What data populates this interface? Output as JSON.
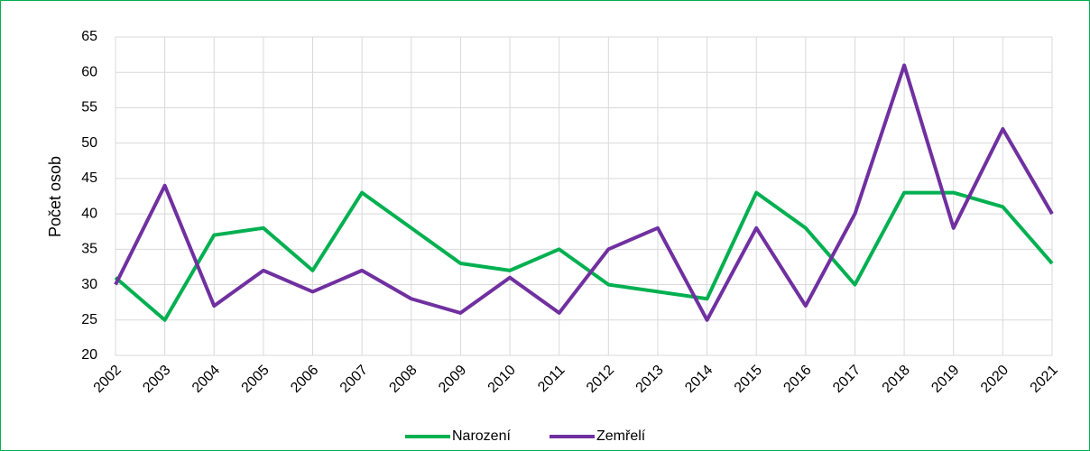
{
  "chart_data": {
    "type": "line",
    "y_label": "Počet osob",
    "categories": [
      "2002",
      "2003",
      "2004",
      "2005",
      "2006",
      "2007",
      "2008",
      "2009",
      "2010",
      "2011",
      "2012",
      "2013",
      "2014",
      "2015",
      "2016",
      "2017",
      "2018",
      "2019",
      "2020",
      "2021"
    ],
    "series": [
      {
        "name": "Narození",
        "color": "#00b050",
        "values": [
          31,
          25,
          37,
          38,
          32,
          43,
          38,
          33,
          32,
          35,
          30,
          29,
          28,
          43,
          38,
          30,
          43,
          43,
          41,
          33
        ]
      },
      {
        "name": "Zemřelí",
        "color": "#7030a0",
        "values": [
          30,
          44,
          27,
          32,
          29,
          32,
          28,
          26,
          31,
          26,
          35,
          38,
          25,
          38,
          27,
          40,
          61,
          38,
          52,
          40
        ]
      }
    ],
    "ylim": [
      20,
      65
    ],
    "yticks": [
      20,
      25,
      30,
      35,
      40,
      45,
      50,
      55,
      60,
      65
    ],
    "grid": true,
    "legend": "bottom"
  }
}
